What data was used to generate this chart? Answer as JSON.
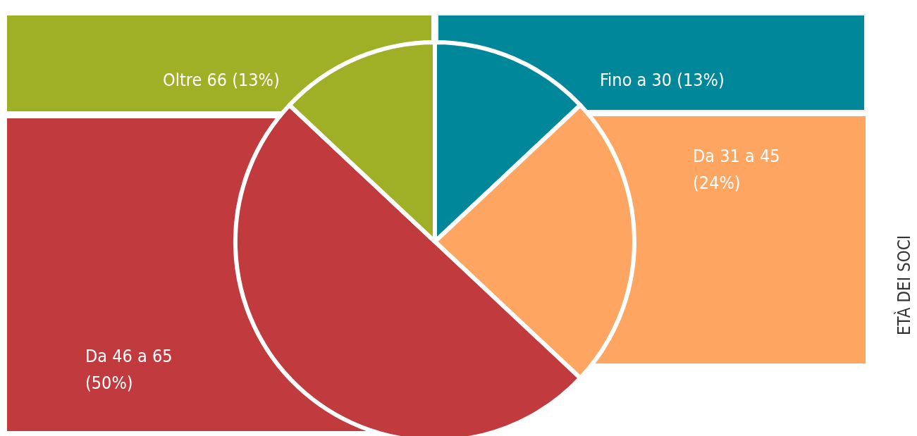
{
  "chart_data": {
    "type": "pie",
    "title": "ETÀ DEI SOCI",
    "categories": [
      "Fino a 30",
      "Da 31 a 45",
      "Da 46 a 65",
      "Oltre 66"
    ],
    "values": [
      13,
      24,
      50,
      13
    ],
    "value_labels": [
      "(13%)",
      "(24%)",
      "(50%)",
      "(13%)"
    ],
    "colors": [
      "#00889a",
      "#ffa562",
      "#c13a3e",
      "#a0b026"
    ],
    "legend": false
  }
}
